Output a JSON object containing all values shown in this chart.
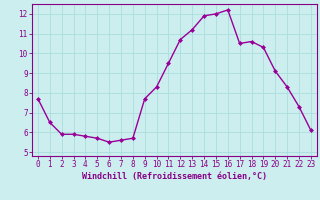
{
  "x": [
    0,
    1,
    2,
    3,
    4,
    5,
    6,
    7,
    8,
    9,
    10,
    11,
    12,
    13,
    14,
    15,
    16,
    17,
    18,
    19,
    20,
    21,
    22,
    23
  ],
  "y": [
    7.7,
    6.5,
    5.9,
    5.9,
    5.8,
    5.7,
    5.5,
    5.6,
    5.7,
    7.7,
    8.3,
    9.5,
    10.7,
    11.2,
    11.9,
    12.0,
    12.2,
    10.5,
    10.6,
    10.3,
    9.1,
    8.3,
    7.3,
    6.1
  ],
  "line_color": "#990099",
  "marker": "D",
  "marker_size": 2.0,
  "line_width": 1.0,
  "bg_color": "#cceeee",
  "grid_color": "#aadddd",
  "xlabel": "Windchill (Refroidissement éolien,°C)",
  "xlabel_color": "#880088",
  "tick_color": "#880088",
  "ylim_min": 4.8,
  "ylim_max": 12.5,
  "yticks": [
    5,
    6,
    7,
    8,
    9,
    10,
    11,
    12
  ],
  "xlim_min": -0.5,
  "xlim_max": 23.5,
  "spine_color": "#880088",
  "font_size": 5.5,
  "xlabel_font_size": 6.0
}
